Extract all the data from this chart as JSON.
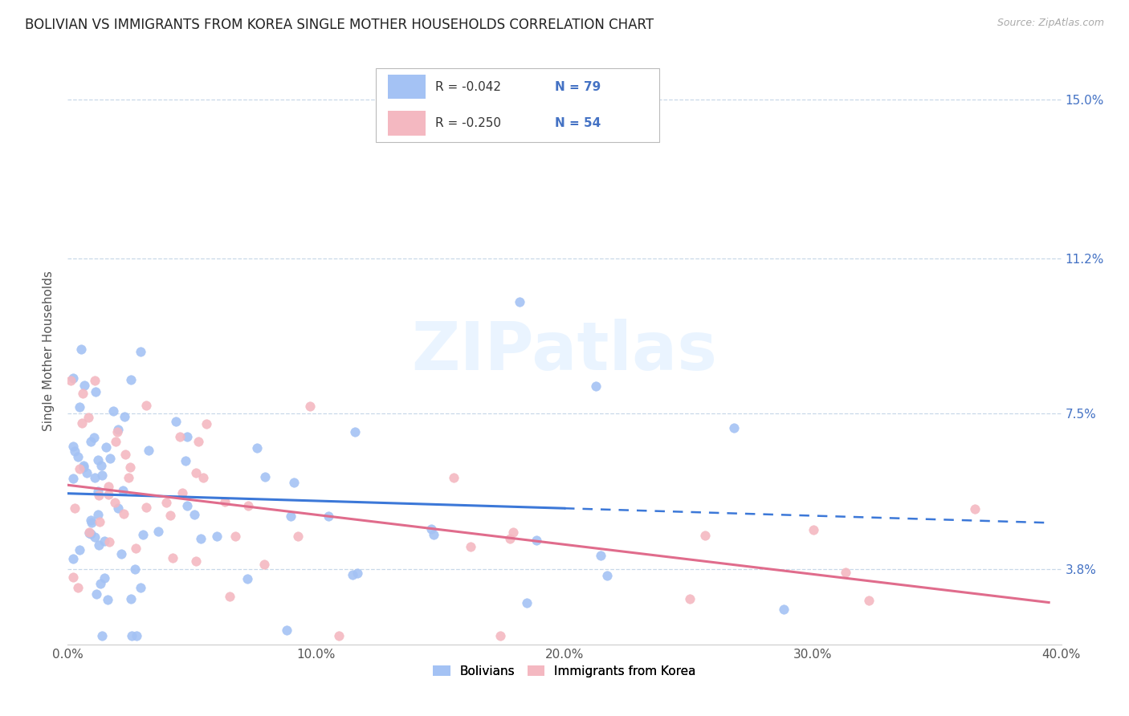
{
  "title": "BOLIVIAN VS IMMIGRANTS FROM KOREA SINGLE MOTHER HOUSEHOLDS CORRELATION CHART",
  "source": "Source: ZipAtlas.com",
  "ylabel": "Single Mother Households",
  "xlim": [
    0.0,
    0.4
  ],
  "ylim": [
    0.02,
    0.16
  ],
  "yticks": [
    0.038,
    0.075,
    0.112,
    0.15
  ],
  "ytick_labels": [
    "3.8%",
    "7.5%",
    "11.2%",
    "15.0%"
  ],
  "xticks": [
    0.0,
    0.1,
    0.2,
    0.3,
    0.4
  ],
  "xtick_labels": [
    "0.0%",
    "10.0%",
    "20.0%",
    "30.0%",
    "40.0%"
  ],
  "bolivians_color": "#a4c2f4",
  "korea_color": "#f4b8c1",
  "bolivians_line_color": "#3c78d8",
  "korea_line_color": "#e06c8c",
  "legend_R_bolivians": "R = -0.042",
  "legend_N_bolivians": "N = 79",
  "legend_R_korea": "R = -0.250",
  "legend_N_korea": "N = 54",
  "legend_label_bolivians": "Bolivians",
  "legend_label_korea": "Immigrants from Korea",
  "watermark": "ZIPatlas",
  "title_fontsize": 12,
  "axis_label_fontsize": 11,
  "tick_fontsize": 11,
  "grid_color": "#c8d8e8",
  "background_color": "#ffffff",
  "right_axis_color": "#4472c4",
  "blue_trend_start_y": 0.056,
  "blue_trend_end_y": 0.049,
  "blue_trend_solid_end_x": 0.2,
  "blue_trend_end_x": 0.395,
  "pink_trend_start_y": 0.058,
  "pink_trend_end_y": 0.03,
  "pink_trend_end_x": 0.395
}
